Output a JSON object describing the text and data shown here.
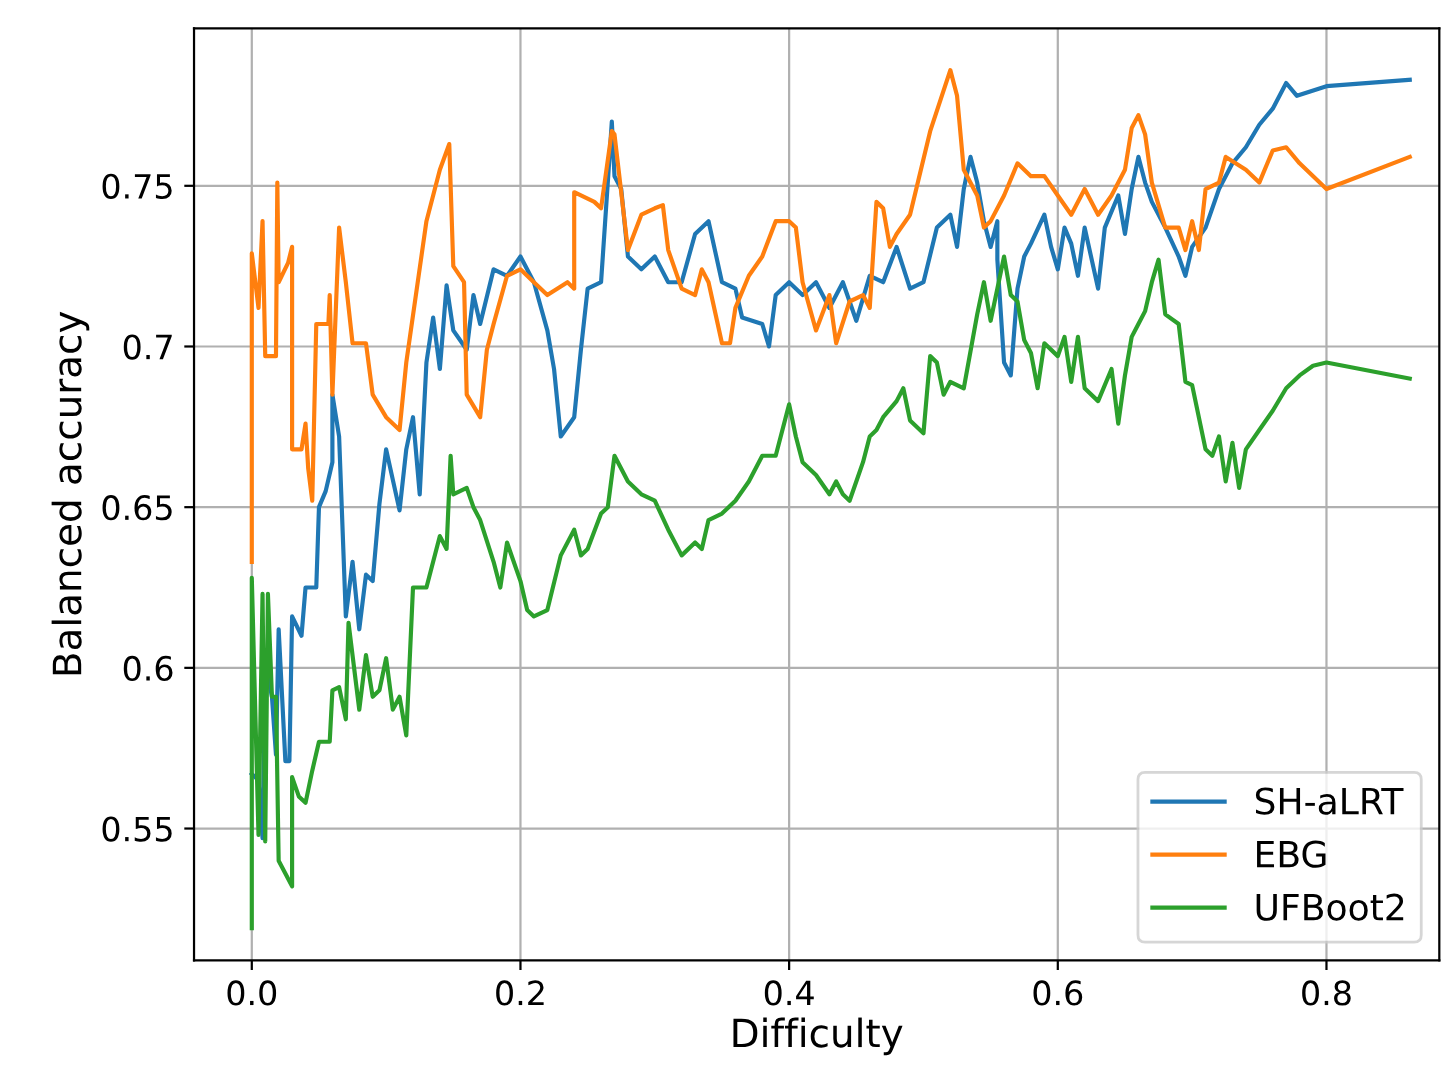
{
  "chart_data": {
    "type": "line",
    "xlabel": "Difficulty",
    "ylabel": "Balanced accuracy",
    "xlim": [
      -0.043,
      0.884
    ],
    "ylim": [
      0.509,
      0.799
    ],
    "xticks": [
      {
        "value": 0,
        "label": "0.0"
      },
      0.2,
      0.4,
      0.6,
      0.8
    ],
    "yticks": [
      0.55,
      0.6,
      0.65,
      0.7,
      0.75
    ],
    "grid": true,
    "legend": "bottom right",
    "series": [
      {
        "name": "SH-aLRT",
        "color": "#1f77b4",
        "x": [
          0,
          0.005,
          0.008,
          0.01,
          0.015,
          0.018,
          0.02,
          0.025,
          0.028,
          0.03,
          0.037,
          0.04,
          0.048,
          0.05,
          0.055,
          0.06,
          0.06,
          0.065,
          0.07,
          0.075,
          0.08,
          0.085,
          0.09,
          0.095,
          0.1,
          0.11,
          0.115,
          0.12,
          0.125,
          0.13,
          0.135,
          0.14,
          0.145,
          0.15,
          0.16,
          0.165,
          0.17,
          0.18,
          0.19,
          0.2,
          0.21,
          0.22,
          0.225,
          0.23,
          0.24,
          0.245,
          0.25,
          0.26,
          0.265,
          0.268,
          0.27,
          0.275,
          0.28,
          0.29,
          0.3,
          0.31,
          0.32,
          0.33,
          0.34,
          0.35,
          0.36,
          0.365,
          0.38,
          0.385,
          0.39,
          0.4,
          0.41,
          0.42,
          0.43,
          0.44,
          0.45,
          0.46,
          0.47,
          0.48,
          0.49,
          0.5,
          0.51,
          0.52,
          0.525,
          0.53,
          0.535,
          0.54,
          0.545,
          0.55,
          0.555,
          0.555,
          0.56,
          0.565,
          0.57,
          0.575,
          0.58,
          0.59,
          0.595,
          0.6,
          0.605,
          0.61,
          0.615,
          0.62,
          0.63,
          0.635,
          0.645,
          0.65,
          0.655,
          0.66,
          0.665,
          0.67,
          0.68,
          0.69,
          0.695,
          0.7,
          0.71,
          0.72,
          0.73,
          0.74,
          0.75,
          0.76,
          0.77,
          0.778,
          0.8,
          0.862
        ],
        "values": [
          0.567,
          0.565,
          0.547,
          0.602,
          0.591,
          0.573,
          0.612,
          0.571,
          0.571,
          0.616,
          0.61,
          0.625,
          0.625,
          0.65,
          0.655,
          0.664,
          0.685,
          0.672,
          0.616,
          0.633,
          0.612,
          0.629,
          0.627,
          0.651,
          0.668,
          0.649,
          0.668,
          0.678,
          0.654,
          0.695,
          0.709,
          0.693,
          0.719,
          0.705,
          0.699,
          0.716,
          0.707,
          0.724,
          0.722,
          0.728,
          0.72,
          0.705,
          0.693,
          0.672,
          0.678,
          0.699,
          0.718,
          0.72,
          0.751,
          0.77,
          0.753,
          0.749,
          0.728,
          0.724,
          0.728,
          0.72,
          0.72,
          0.735,
          0.739,
          0.72,
          0.718,
          0.709,
          0.707,
          0.7,
          0.716,
          0.72,
          0.716,
          0.72,
          0.712,
          0.72,
          0.708,
          0.722,
          0.72,
          0.731,
          0.718,
          0.72,
          0.737,
          0.741,
          0.731,
          0.749,
          0.759,
          0.751,
          0.739,
          0.731,
          0.739,
          0.727,
          0.695,
          0.691,
          0.718,
          0.728,
          0.732,
          0.741,
          0.731,
          0.724,
          0.737,
          0.732,
          0.722,
          0.737,
          0.718,
          0.737,
          0.747,
          0.735,
          0.749,
          0.759,
          0.751,
          0.745,
          0.737,
          0.728,
          0.722,
          0.731,
          0.737,
          0.749,
          0.757,
          0.762,
          0.769,
          0.774,
          0.782,
          0.778,
          0.781,
          0.783
        ]
      },
      {
        "name": "EBG",
        "color": "#ff7f0e",
        "x": [
          0,
          0,
          0.005,
          0.008,
          0.01,
          0.018,
          0.019,
          0.02,
          0.027,
          0.03,
          0.03,
          0.037,
          0.04,
          0.042,
          0.045,
          0.048,
          0.057,
          0.058,
          0.06,
          0.065,
          0.07,
          0.075,
          0.085,
          0.09,
          0.1,
          0.11,
          0.115,
          0.13,
          0.14,
          0.147,
          0.15,
          0.158,
          0.16,
          0.17,
          0.175,
          0.18,
          0.19,
          0.2,
          0.21,
          0.22,
          0.235,
          0.24,
          0.24,
          0.255,
          0.26,
          0.268,
          0.27,
          0.28,
          0.29,
          0.3,
          0.306,
          0.31,
          0.32,
          0.33,
          0.335,
          0.34,
          0.35,
          0.356,
          0.36,
          0.37,
          0.38,
          0.39,
          0.4,
          0.405,
          0.41,
          0.42,
          0.43,
          0.435,
          0.445,
          0.455,
          0.46,
          0.465,
          0.47,
          0.475,
          0.48,
          0.49,
          0.505,
          0.52,
          0.525,
          0.53,
          0.54,
          0.545,
          0.55,
          0.56,
          0.57,
          0.58,
          0.59,
          0.6,
          0.61,
          0.62,
          0.63,
          0.64,
          0.65,
          0.655,
          0.66,
          0.665,
          0.67,
          0.68,
          0.69,
          0.695,
          0.7,
          0.705,
          0.71,
          0.72,
          0.725,
          0.74,
          0.75,
          0.76,
          0.77,
          0.78,
          0.8,
          0.862
        ],
        "values": [
          0.633,
          0.729,
          0.712,
          0.739,
          0.697,
          0.697,
          0.751,
          0.72,
          0.726,
          0.731,
          0.668,
          0.668,
          0.676,
          0.662,
          0.652,
          0.707,
          0.707,
          0.716,
          0.685,
          0.737,
          0.72,
          0.701,
          0.701,
          0.685,
          0.678,
          0.674,
          0.695,
          0.739,
          0.755,
          0.763,
          0.725,
          0.72,
          0.685,
          0.678,
          0.699,
          0.707,
          0.722,
          0.724,
          0.72,
          0.716,
          0.72,
          0.718,
          0.748,
          0.745,
          0.743,
          0.767,
          0.766,
          0.73,
          0.741,
          0.743,
          0.744,
          0.73,
          0.718,
          0.716,
          0.724,
          0.72,
          0.701,
          0.701,
          0.712,
          0.722,
          0.728,
          0.739,
          0.739,
          0.737,
          0.72,
          0.705,
          0.716,
          0.701,
          0.714,
          0.716,
          0.712,
          0.745,
          0.743,
          0.731,
          0.735,
          0.741,
          0.767,
          0.786,
          0.778,
          0.755,
          0.747,
          0.737,
          0.739,
          0.747,
          0.757,
          0.753,
          0.753,
          0.747,
          0.741,
          0.749,
          0.741,
          0.747,
          0.755,
          0.768,
          0.772,
          0.766,
          0.751,
          0.737,
          0.737,
          0.73,
          0.739,
          0.73,
          0.749,
          0.751,
          0.759,
          0.755,
          0.751,
          0.761,
          0.762,
          0.757,
          0.749,
          0.759
        ]
      },
      {
        "name": "UFBoot2",
        "color": "#2ca02c",
        "x": [
          0,
          0,
          0.005,
          0.008,
          0.01,
          0.012,
          0.015,
          0.018,
          0.02,
          0.025,
          0.03,
          0.03,
          0.035,
          0.04,
          0.045,
          0.05,
          0.058,
          0.06,
          0.065,
          0.07,
          0.072,
          0.08,
          0.085,
          0.09,
          0.095,
          0.1,
          0.105,
          0.11,
          0.115,
          0.12,
          0.13,
          0.14,
          0.145,
          0.148,
          0.15,
          0.16,
          0.165,
          0.17,
          0.18,
          0.185,
          0.19,
          0.2,
          0.205,
          0.21,
          0.22,
          0.23,
          0.24,
          0.245,
          0.25,
          0.26,
          0.265,
          0.27,
          0.28,
          0.29,
          0.3,
          0.31,
          0.32,
          0.33,
          0.335,
          0.34,
          0.35,
          0.36,
          0.37,
          0.38,
          0.39,
          0.4,
          0.405,
          0.41,
          0.42,
          0.43,
          0.435,
          0.44,
          0.445,
          0.45,
          0.455,
          0.46,
          0.465,
          0.47,
          0.48,
          0.485,
          0.49,
          0.5,
          0.505,
          0.51,
          0.515,
          0.52,
          0.53,
          0.54,
          0.545,
          0.55,
          0.555,
          0.56,
          0.565,
          0.57,
          0.575,
          0.58,
          0.585,
          0.59,
          0.6,
          0.605,
          0.61,
          0.615,
          0.62,
          0.63,
          0.64,
          0.645,
          0.65,
          0.655,
          0.66,
          0.665,
          0.67,
          0.675,
          0.68,
          0.69,
          0.695,
          0.7,
          0.71,
          0.715,
          0.72,
          0.725,
          0.73,
          0.735,
          0.74,
          0.75,
          0.76,
          0.77,
          0.78,
          0.79,
          0.8,
          0.862
        ],
        "values": [
          0.519,
          0.628,
          0.548,
          0.623,
          0.546,
          0.623,
          0.591,
          0.591,
          0.54,
          0.536,
          0.532,
          0.566,
          0.56,
          0.558,
          0.568,
          0.577,
          0.577,
          0.593,
          0.594,
          0.584,
          0.614,
          0.587,
          0.604,
          0.591,
          0.593,
          0.603,
          0.587,
          0.591,
          0.579,
          0.625,
          0.625,
          0.641,
          0.637,
          0.666,
          0.654,
          0.656,
          0.65,
          0.646,
          0.633,
          0.625,
          0.639,
          0.627,
          0.618,
          0.616,
          0.618,
          0.635,
          0.643,
          0.635,
          0.637,
          0.648,
          0.65,
          0.666,
          0.658,
          0.654,
          0.652,
          0.643,
          0.635,
          0.639,
          0.637,
          0.646,
          0.648,
          0.652,
          0.658,
          0.666,
          0.666,
          0.682,
          0.672,
          0.664,
          0.66,
          0.654,
          0.658,
          0.654,
          0.652,
          0.658,
          0.664,
          0.672,
          0.674,
          0.678,
          0.683,
          0.687,
          0.677,
          0.673,
          0.697,
          0.695,
          0.685,
          0.689,
          0.687,
          0.71,
          0.72,
          0.708,
          0.718,
          0.728,
          0.716,
          0.714,
          0.702,
          0.698,
          0.687,
          0.701,
          0.697,
          0.703,
          0.689,
          0.703,
          0.687,
          0.683,
          0.693,
          0.676,
          0.691,
          0.703,
          0.707,
          0.711,
          0.72,
          0.727,
          0.71,
          0.707,
          0.689,
          0.688,
          0.668,
          0.666,
          0.672,
          0.658,
          0.67,
          0.656,
          0.668,
          0.674,
          0.68,
          0.687,
          0.691,
          0.694,
          0.695,
          0.69
        ]
      }
    ]
  }
}
